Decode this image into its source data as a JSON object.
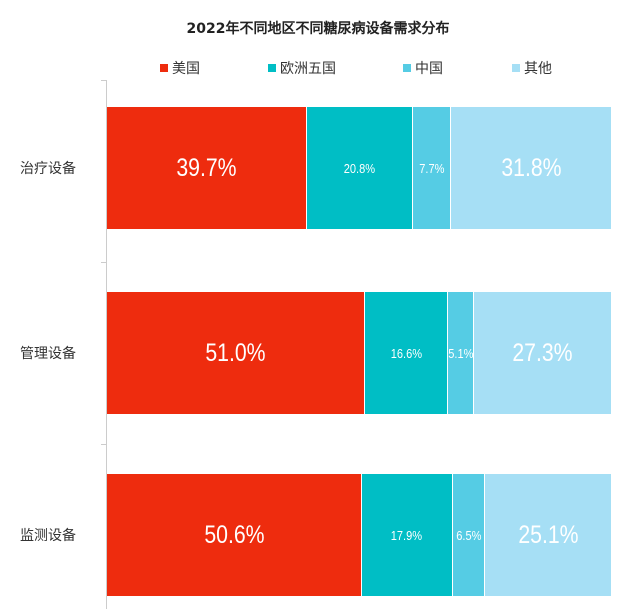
{
  "chart_data": {
    "type": "bar",
    "orientation": "horizontal",
    "stacked": "percent",
    "title": "2022年不同地区不同糖尿病设备需求分布",
    "categories": [
      "治疗设备",
      "管理设备",
      "监测设备"
    ],
    "series": [
      {
        "name": "美国",
        "color": "#ee2c0e",
        "values": [
          39.7,
          51.0,
          50.6
        ],
        "labels": [
          "39.7%",
          "51.0%",
          "50.6%"
        ]
      },
      {
        "name": "欧洲五国",
        "color": "#00bec5",
        "values": [
          20.8,
          16.6,
          17.9
        ],
        "labels": [
          "20.8%",
          "16.6%",
          "17.9%"
        ]
      },
      {
        "name": "中国",
        "color": "#55cce4",
        "values": [
          7.7,
          5.1,
          6.5
        ],
        "labels": [
          "7.7%",
          "5.1%",
          "6.5%"
        ]
      },
      {
        "name": "其他",
        "color": "#a6dff5",
        "values": [
          31.8,
          27.3,
          25.1
        ],
        "labels": [
          "31.8%",
          "27.3%",
          "25.1%"
        ]
      }
    ],
    "xlim": [
      0,
      100
    ],
    "legend": "top",
    "grid": false
  }
}
